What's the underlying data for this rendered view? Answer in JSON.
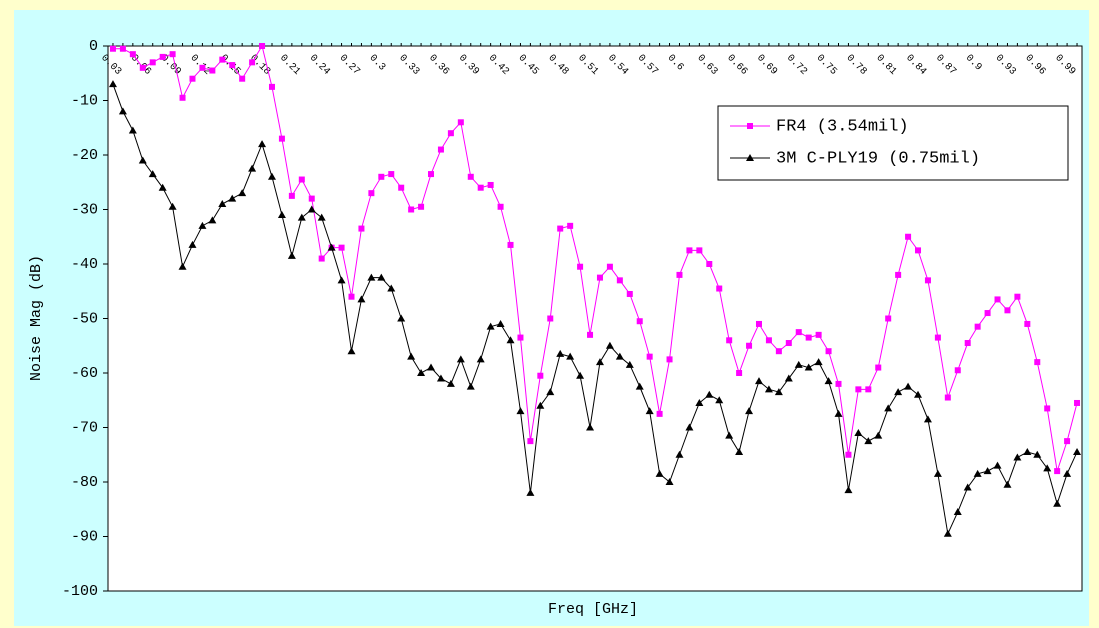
{
  "chart_data": {
    "type": "line",
    "x_label": "Freq [GHz]",
    "y_label": "Noise Mag (dB)",
    "categories": [
      "0.03",
      null,
      null,
      "0.06",
      null,
      null,
      "0.09",
      null,
      null,
      "0.12",
      null,
      null,
      "0.15",
      null,
      null,
      "0.18",
      null,
      null,
      "0.21",
      null,
      null,
      "0.24",
      null,
      null,
      "0.27",
      null,
      null,
      "0.3",
      null,
      null,
      "0.33",
      null,
      null,
      "0.36",
      null,
      null,
      "0.39",
      null,
      null,
      "0.42",
      null,
      null,
      "0.45",
      null,
      null,
      "0.48",
      null,
      null,
      "0.51",
      null,
      null,
      "0.54",
      null,
      null,
      "0.57",
      null,
      null,
      "0.6",
      null,
      null,
      "0.63",
      null,
      null,
      "0.66",
      null,
      null,
      "0.69",
      null,
      null,
      "0.72",
      null,
      null,
      "0.75",
      null,
      null,
      "0.78",
      null,
      null,
      "0.81",
      null,
      null,
      "0.84",
      null,
      null,
      "0.87",
      null,
      null,
      "0.9",
      null,
      null,
      "0.93",
      null,
      null,
      "0.96",
      null,
      null,
      "0.99",
      null
    ],
    "series": [
      {
        "name": "FR4 (3.54mil)",
        "color": "#ff00ff",
        "marker": "square",
        "values": [
          -0.5,
          -0.5,
          -1.5,
          -4,
          -3,
          -2,
          -1.5,
          -9.5,
          -6,
          -4,
          -4.5,
          -2.5,
          -3.5,
          -6,
          -3,
          0,
          -7.5,
          -17,
          -27.5,
          -24.5,
          -28,
          -39,
          -37,
          -37,
          -46,
          -33.5,
          -27,
          -24,
          -23.5,
          -26,
          -30,
          -29.5,
          -23.5,
          -19,
          -16,
          -14,
          -24,
          -26,
          -25.5,
          -29.5,
          -36.5,
          -53.5,
          -72.5,
          -60.5,
          -50,
          -33.5,
          -33,
          -40.5,
          -53,
          -42.5,
          -40.5,
          -43,
          -45.5,
          -50.5,
          -57,
          -67.5,
          -57.5,
          -42,
          -37.5,
          -37.5,
          -40,
          -44.5,
          -54,
          -60,
          -55,
          -51,
          -54,
          -56,
          -54.5,
          -52.5,
          -53.5,
          -53,
          -56,
          -62,
          -75,
          -63,
          -63,
          -59,
          -50,
          -42,
          -35,
          -37.5,
          -43,
          -53.5,
          -64.5,
          -59.5,
          -54.5,
          -51.5,
          -49,
          -46.5,
          -48.5,
          -46,
          -51,
          -58,
          -66.5,
          -78,
          -72.5,
          -65.5
        ]
      },
      {
        "name": "3M C-PLY19 (0.75mil)",
        "color": "#000000",
        "marker": "triangle",
        "values": [
          -7,
          -12,
          -15.5,
          -21,
          -23.5,
          -26,
          -29.5,
          -40.5,
          -36.5,
          -33,
          -32,
          -29,
          -28,
          -27,
          -22.5,
          -18,
          -24,
          -31,
          -38.5,
          -31.5,
          -30,
          -31.5,
          -37,
          -43,
          -56,
          -46.5,
          -42.5,
          -42.5,
          -44.5,
          -50,
          -57,
          -60,
          -59,
          -61,
          -62,
          -57.5,
          -62.5,
          -57.5,
          -51.5,
          -51,
          -54,
          -67,
          -82,
          -66,
          -63.5,
          -56.5,
          -57,
          -60.5,
          -70,
          -58,
          -55,
          -57,
          -58.5,
          -62.5,
          -67,
          -78.5,
          -80,
          -75,
          -70,
          -65.5,
          -64,
          -65,
          -71.5,
          -74.5,
          -67,
          -61.5,
          -63,
          -63.5,
          -61,
          -58.5,
          -59,
          -58,
          -61.5,
          -67.5,
          -81.5,
          -71,
          -72.5,
          -71.5,
          -66.5,
          -63.5,
          -62.5,
          -64,
          -68.5,
          -78.5,
          -89.5,
          -85.5,
          -81,
          -78.5,
          -78,
          -77,
          -80.5,
          -75.5,
          -74.5,
          -75,
          -77.5,
          -84,
          -78.5,
          -74.5
        ]
      }
    ],
    "ylim": [
      -100,
      0
    ],
    "yticks": [
      0,
      -10,
      -20,
      -30,
      -40,
      -50,
      -60,
      -70,
      -80,
      -90,
      -100
    ],
    "legend": "upper right",
    "grid": false
  }
}
